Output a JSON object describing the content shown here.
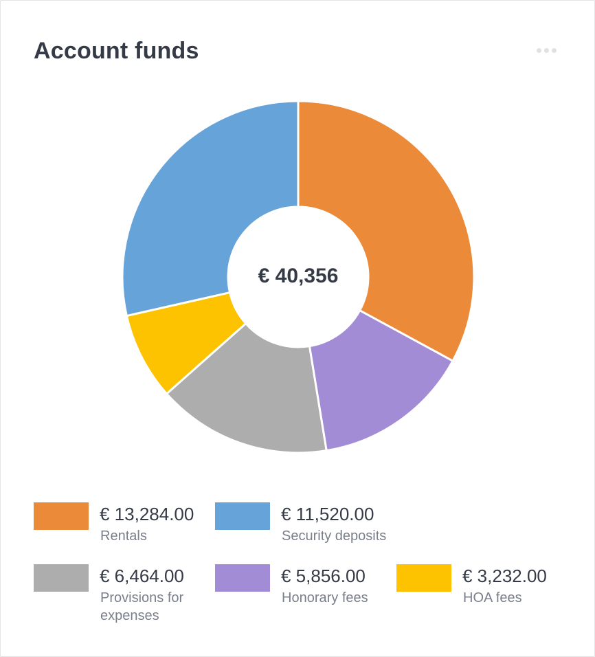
{
  "card": {
    "title": "Account funds",
    "menu_icon": "more-horizontal-icon"
  },
  "chart_data": {
    "type": "pie",
    "variant": "donut",
    "center_label": "€ 40,356",
    "categories": [
      "Rentals",
      "Honorary fees",
      "Provisions for expenses",
      "HOA fees",
      "Security deposits"
    ],
    "values": [
      13284.0,
      5856.0,
      6464.0,
      3232.0,
      11520.0
    ],
    "colors": [
      "#eb8a39",
      "#a28cd5",
      "#adadad",
      "#fdc300",
      "#65a3d9"
    ],
    "legend_position": "bottom"
  },
  "legend": {
    "items": [
      {
        "amount": "€ 13,284.00",
        "label": "Rentals",
        "color": "#eb8a39"
      },
      {
        "amount": "€ 11,520.00",
        "label": "Security deposits",
        "color": "#65a3d9"
      },
      {
        "amount": "€ 6,464.00",
        "label": "Provisions for expenses",
        "color": "#adadad"
      },
      {
        "amount": "€ 5,856.00",
        "label": "Honorary fees",
        "color": "#a28cd5"
      },
      {
        "amount": "€ 3,232.00",
        "label": "HOA fees",
        "color": "#fdc300"
      }
    ]
  }
}
